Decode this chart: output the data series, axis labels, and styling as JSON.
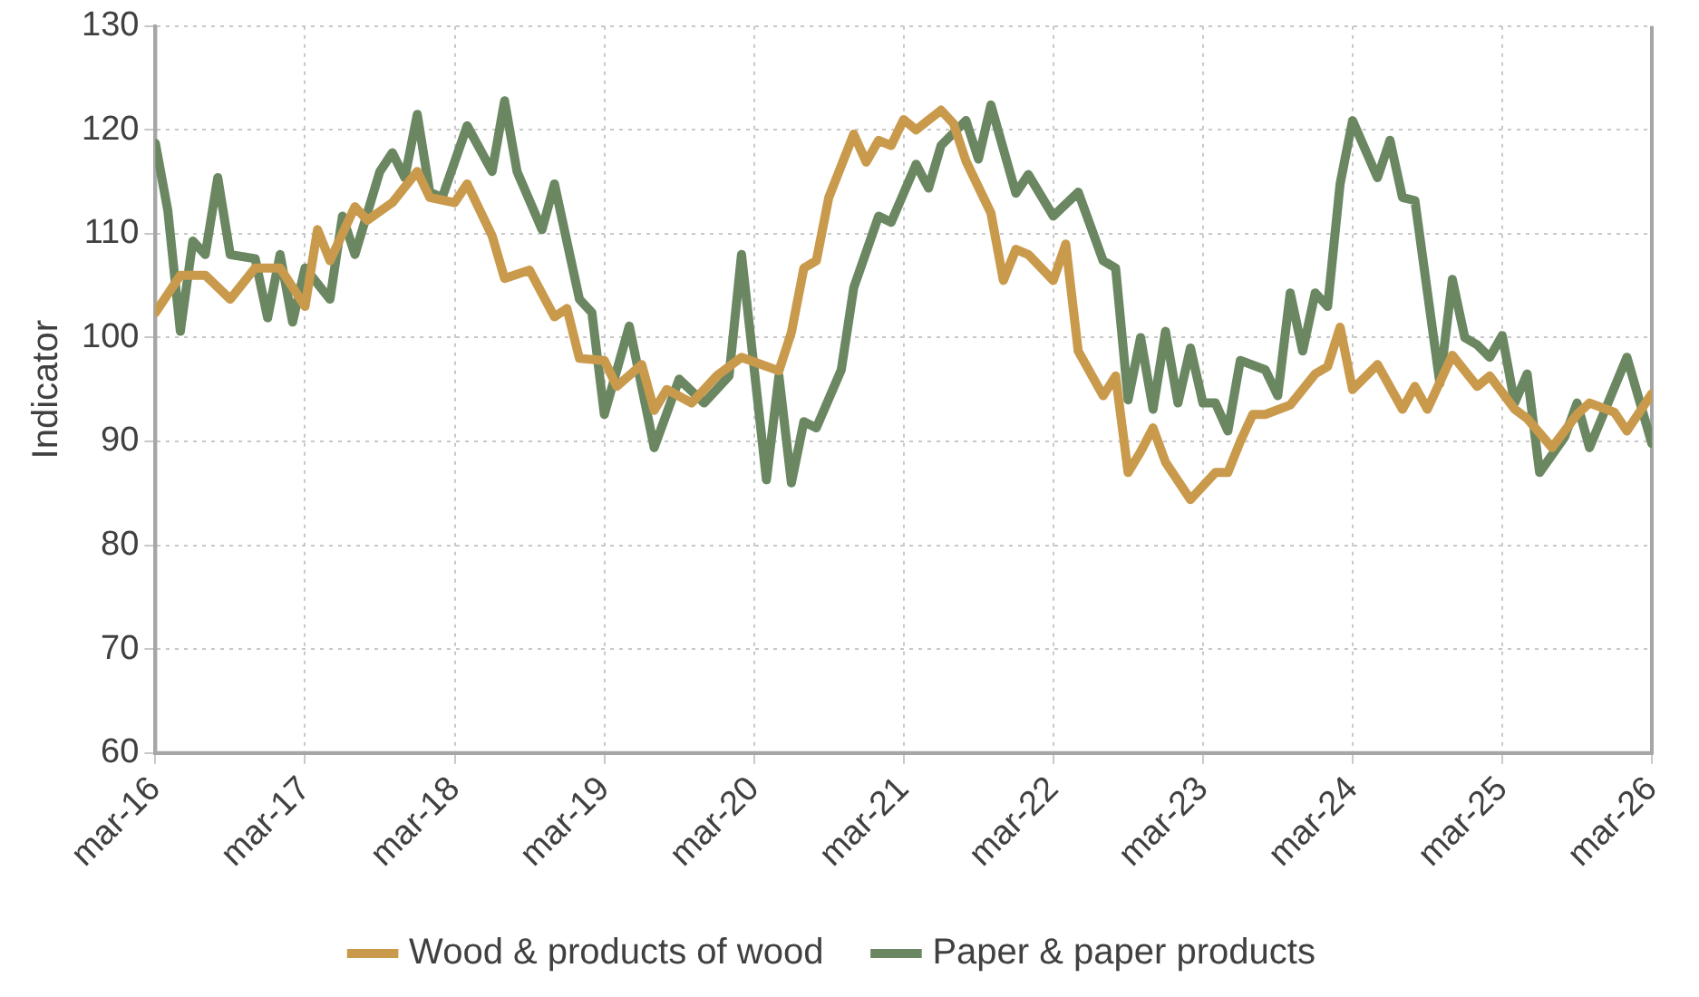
{
  "chart_data": {
    "type": "line",
    "ylabel": "Indicator",
    "ylim": [
      60,
      130
    ],
    "yticks": [
      60,
      70,
      80,
      90,
      100,
      110,
      120,
      130
    ],
    "xlim": [
      "2016-03",
      "2026-03"
    ],
    "xticks": [
      {
        "value": "2016-03",
        "label": "mar-16"
      },
      {
        "value": "2017-03",
        "label": "mar-17"
      },
      {
        "value": "2018-03",
        "label": "mar-18"
      },
      {
        "value": "2019-03",
        "label": "mar-19"
      },
      {
        "value": "2020-03",
        "label": "mar-20"
      },
      {
        "value": "2021-03",
        "label": "mar-21"
      },
      {
        "value": "2022-03",
        "label": "mar-22"
      },
      {
        "value": "2023-03",
        "label": "mar-23"
      },
      {
        "value": "2024-03",
        "label": "mar-24"
      },
      {
        "value": "2025-03",
        "label": "mar-25"
      },
      {
        "value": "2026-03",
        "label": "mar-26"
      }
    ],
    "grid": true,
    "legend": "bottom",
    "marker": "none",
    "line_style": "solid",
    "series": [
      {
        "name": "Wood & products of wood",
        "color": "#c99a4b",
        "x": [
          "2016-03",
          "2016-05",
          "2016-07",
          "2016-09",
          "2016-11",
          "2017-01",
          "2017-03",
          "2017-04",
          "2017-05",
          "2017-07",
          "2017-08",
          "2017-10",
          "2017-12",
          "2018-01",
          "2018-03",
          "2018-04",
          "2018-06",
          "2018-07",
          "2018-09",
          "2018-11",
          "2018-12",
          "2019-01",
          "2019-03",
          "2019-04",
          "2019-06",
          "2019-07",
          "2019-08",
          "2019-10",
          "2019-12",
          "2020-02",
          "2020-05",
          "2020-06",
          "2020-07",
          "2020-08",
          "2020-09",
          "2020-11",
          "2020-12",
          "2021-01",
          "2021-02",
          "2021-03",
          "2021-04",
          "2021-06",
          "2021-07",
          "2021-08",
          "2021-10",
          "2021-11",
          "2021-12",
          "2022-01",
          "2022-03",
          "2022-04",
          "2022-05",
          "2022-07",
          "2022-08",
          "2022-09",
          "2022-10",
          "2022-11",
          "2022-12",
          "2023-02",
          "2023-04",
          "2023-05",
          "2023-06",
          "2023-07",
          "2023-08",
          "2023-10",
          "2023-12",
          "2024-01",
          "2024-02",
          "2024-03",
          "2024-05",
          "2024-07",
          "2024-08",
          "2024-09",
          "2024-11",
          "2025-01",
          "2025-02",
          "2025-04",
          "2025-05",
          "2025-07",
          "2025-09",
          "2025-10",
          "2025-12",
          "2026-01",
          "2026-03"
        ],
        "values": [
          102.4,
          106,
          106,
          103.7,
          106.7,
          106.7,
          103,
          110.4,
          107.4,
          112.6,
          111.3,
          113,
          116,
          113.5,
          113,
          114.8,
          109.8,
          105.7,
          106.5,
          102,
          102.8,
          98,
          97.8,
          95.3,
          97.4,
          93,
          95,
          93.7,
          96.3,
          98.1,
          96.8,
          100.5,
          106.7,
          107.4,
          113.5,
          119.6,
          116.9,
          119,
          118.5,
          121,
          120,
          121.9,
          120.6,
          117,
          112,
          105.5,
          108.5,
          108,
          105.5,
          109,
          98.7,
          94.4,
          96.3,
          87,
          89,
          91.3,
          88,
          84.4,
          87,
          87,
          90,
          92.6,
          92.6,
          93.5,
          96.5,
          97.2,
          101,
          95,
          97.4,
          93.1,
          95.3,
          93.1,
          98.3,
          95.3,
          96.3,
          93.1,
          92.2,
          89.4,
          92.6,
          93.7,
          92.8,
          91,
          94.6
        ]
      },
      {
        "name": "Paper & paper products",
        "color": "#6a8762",
        "x": [
          "2016-03",
          "2016-04",
          "2016-05",
          "2016-06",
          "2016-07",
          "2016-08",
          "2016-09",
          "2016-11",
          "2016-12",
          "2017-01",
          "2017-02",
          "2017-03",
          "2017-05",
          "2017-06",
          "2017-07",
          "2017-09",
          "2017-10",
          "2017-11",
          "2017-12",
          "2018-01",
          "2018-02",
          "2018-04",
          "2018-06",
          "2018-07",
          "2018-08",
          "2018-10",
          "2018-11",
          "2019-01",
          "2019-02",
          "2019-03",
          "2019-05",
          "2019-07",
          "2019-09",
          "2019-11",
          "2020-01",
          "2020-02",
          "2020-04",
          "2020-05",
          "2020-06",
          "2020-07",
          "2020-08",
          "2020-10",
          "2020-11",
          "2021-01",
          "2021-02",
          "2021-04",
          "2021-05",
          "2021-06",
          "2021-08",
          "2021-09",
          "2021-10",
          "2021-12",
          "2022-01",
          "2022-03",
          "2022-05",
          "2022-07",
          "2022-08",
          "2022-09",
          "2022-10",
          "2022-11",
          "2022-12",
          "2023-01",
          "2023-02",
          "2023-03",
          "2023-04",
          "2023-05",
          "2023-06",
          "2023-08",
          "2023-09",
          "2023-10",
          "2023-11",
          "2023-12",
          "2024-01",
          "2024-02",
          "2024-03",
          "2024-05",
          "2024-06",
          "2024-07",
          "2024-08",
          "2024-10",
          "2024-11",
          "2024-12",
          "2025-01",
          "2025-02",
          "2025-03",
          "2025-04",
          "2025-05",
          "2025-06",
          "2025-08",
          "2025-09",
          "2025-10",
          "2026-01",
          "2026-03"
        ],
        "values": [
          118.7,
          112.2,
          100.6,
          109.3,
          108,
          115.4,
          108,
          107.6,
          101.9,
          108,
          101.5,
          106.7,
          103.7,
          111.7,
          108,
          116,
          117.8,
          115.4,
          121.5,
          114,
          113.5,
          120.4,
          116,
          122.8,
          116,
          110.4,
          114.8,
          103.7,
          102.4,
          92.6,
          101.1,
          89.4,
          96,
          93.7,
          96.3,
          108,
          86.3,
          96.3,
          86,
          91.9,
          91.3,
          96.9,
          104.8,
          111.7,
          111.1,
          116.7,
          114.4,
          118.5,
          120.9,
          117.2,
          122.4,
          113.9,
          115.7,
          111.7,
          114,
          107.4,
          106.7,
          94,
          100,
          93.1,
          100.6,
          93.7,
          99,
          93.7,
          93.7,
          91,
          97.8,
          96.9,
          94.4,
          104.3,
          98.7,
          104.3,
          103,
          114.8,
          120.9,
          115.4,
          119,
          113.5,
          113.2,
          95.6,
          105.6,
          100,
          99.3,
          98.1,
          100.2,
          93.7,
          96.5,
          87,
          90.4,
          93.7,
          89.4,
          98.1,
          89.8
        ]
      }
    ]
  }
}
